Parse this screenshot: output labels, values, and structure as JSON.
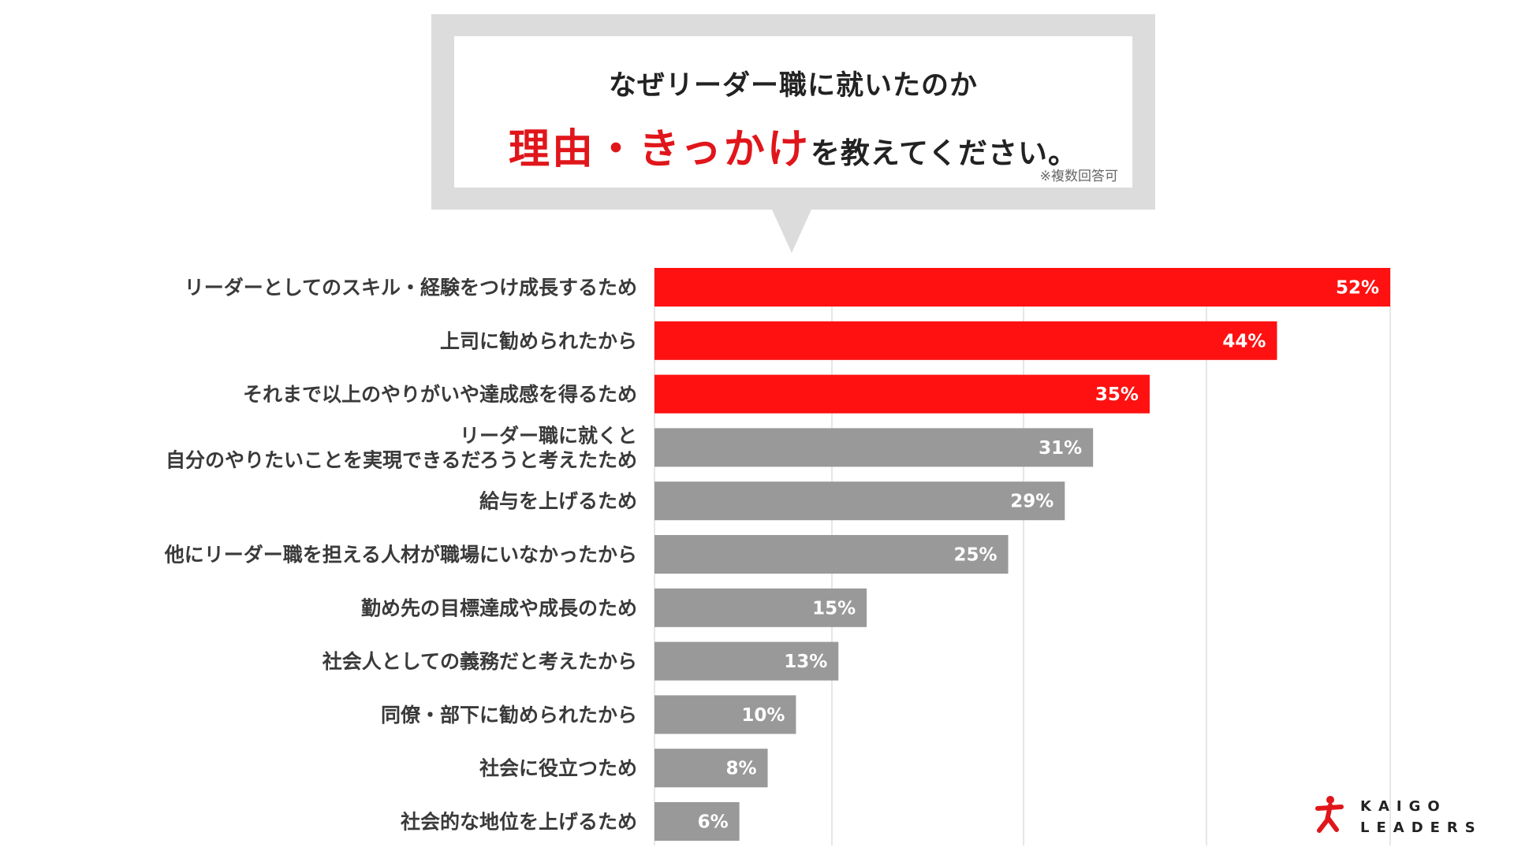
{
  "header": {
    "question_line1": "なぜリーダー職に就いたのか",
    "question_highlight": "理由・きっかけ",
    "question_rest": "を教えてください。",
    "note": "※複数回答可"
  },
  "logo": {
    "line1": "KAIGO",
    "line2": "LEADERS"
  },
  "colors": {
    "highlight": "#ff1111",
    "bar_gray": "#999999",
    "grid": "#cccccc"
  },
  "chart_data": {
    "type": "bar",
    "orientation": "horizontal",
    "categories": [
      "リーダーとしてのスキル・経験をつけ成長するため",
      "上司に勧められたから",
      "それまで以上のやりがいや達成感を得るため",
      "リーダー職に就くと\n自分のやりたいことを実現できるだろうと考えたため",
      "給与を上げるため",
      "他にリーダー職を担える人材が職場にいなかったから",
      "勤め先の目標達成や成長のため",
      "社会人としての義務だと考えたから",
      "同僚・部下に勧められたから",
      "社会に役立つため",
      "社会的な地位を上げるため"
    ],
    "values": [
      52,
      44,
      35,
      31,
      29,
      25,
      15,
      13,
      10,
      8,
      6
    ],
    "value_labels": [
      "52%",
      "44%",
      "35%",
      "31%",
      "29%",
      "25%",
      "15%",
      "13%",
      "10%",
      "8%",
      "6%"
    ],
    "highlighted_count": 3,
    "xlim": [
      0,
      52
    ],
    "unit": "%",
    "grid": true
  }
}
